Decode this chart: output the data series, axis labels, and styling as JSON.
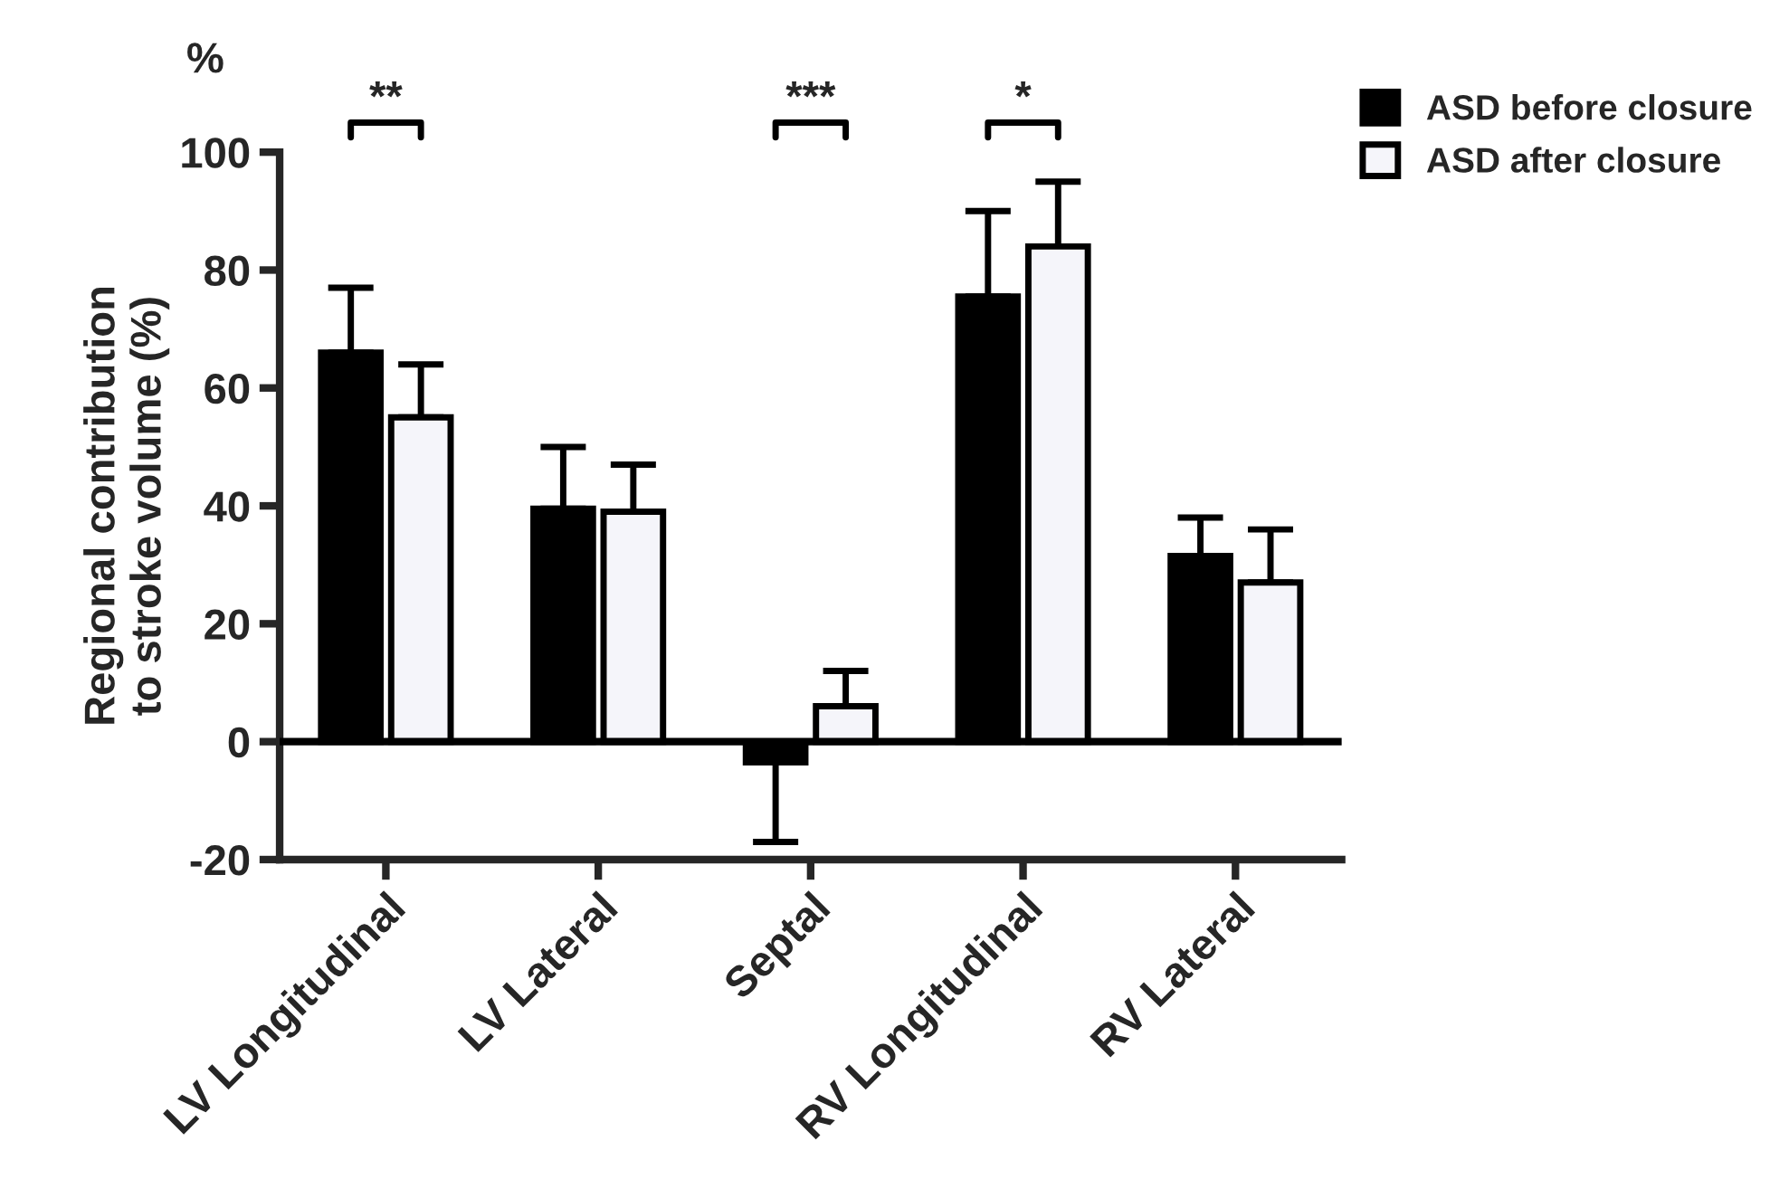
{
  "chart_data": {
    "type": "bar",
    "ylabel": "Regional contribution\nto stroke volume (%)",
    "categories": [
      "LV Longitudinal",
      "LV Lateral",
      "Septal",
      "RV Longitudinal",
      "RV Lateral"
    ],
    "series": [
      {
        "name": "ASD before closure",
        "color": "#000000",
        "values": [
          66,
          39.5,
          -3.5,
          75.5,
          31.5
        ],
        "errors": [
          [
            66,
            77
          ],
          [
            39.5,
            50
          ],
          [
            -17,
            -3.5
          ],
          [
            75.5,
            90
          ],
          [
            31.5,
            38
          ]
        ]
      },
      {
        "name": "ASD after closure",
        "color": "#f5f5fa",
        "values": [
          55,
          39,
          6,
          84,
          27
        ],
        "errors": [
          [
            55,
            64
          ],
          [
            39,
            47
          ],
          [
            6,
            12
          ],
          [
            84,
            95
          ],
          [
            27,
            36
          ]
        ]
      }
    ],
    "ylim": [
      -20,
      100
    ],
    "yticks": [
      -20,
      0,
      20,
      40,
      60,
      80,
      100
    ],
    "ref_lines": [
      {
        "axis": "y",
        "value": 0,
        "label": null
      }
    ],
    "annotations": [
      "%",
      "**",
      "***",
      "*"
    ],
    "legend": "top right",
    "grid": false
  }
}
